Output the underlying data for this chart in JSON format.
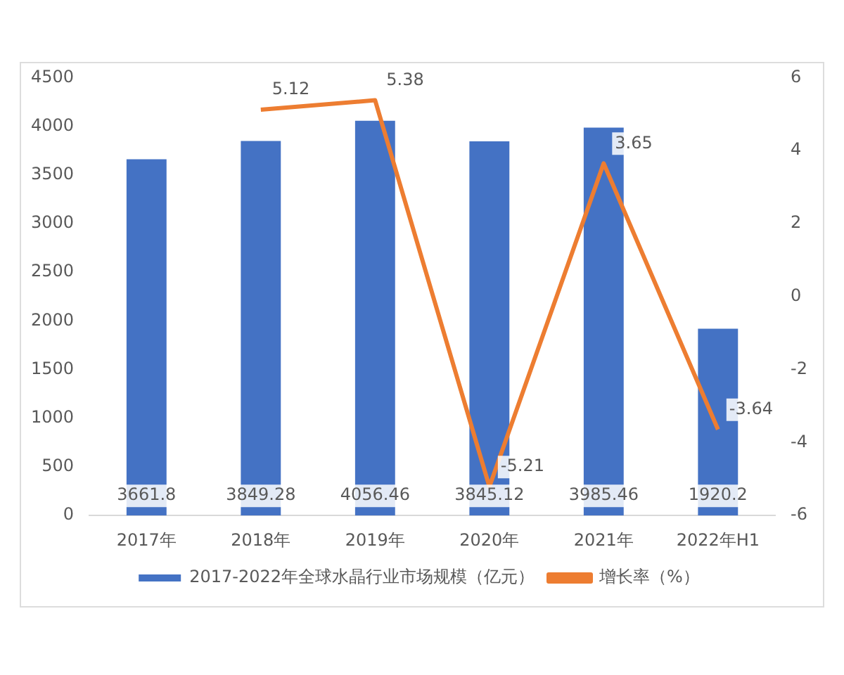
{
  "chart_data": {
    "type": "bar",
    "categories": [
      "2017年",
      "2018年",
      "2019年",
      "2020年",
      "2021年",
      "2022年H1"
    ],
    "series": [
      {
        "name": "2017-2022年全球水晶行业市场规模（亿元）",
        "color": "#4472c4",
        "values": [
          3661.8,
          3849.28,
          4056.46,
          3845.12,
          3985.46,
          1920.2
        ]
      },
      {
        "name": "增长率（%）",
        "type": "line",
        "axis": "y2",
        "color": "#ed7d31",
        "values": [
          null,
          5.12,
          5.38,
          -5.21,
          3.65,
          -3.64
        ]
      }
    ],
    "data_labels": true,
    "ylim": [
      0,
      4500
    ],
    "yticks": [
      0,
      500,
      1000,
      1500,
      2000,
      2500,
      3000,
      3500,
      4000,
      4500
    ],
    "y2lim": [
      -6,
      6
    ],
    "y2ticks": [
      -6,
      -4,
      -2,
      0,
      2,
      4,
      6
    ],
    "grid": false,
    "legend": "bottom",
    "marker": "none",
    "line_style": "solid"
  }
}
